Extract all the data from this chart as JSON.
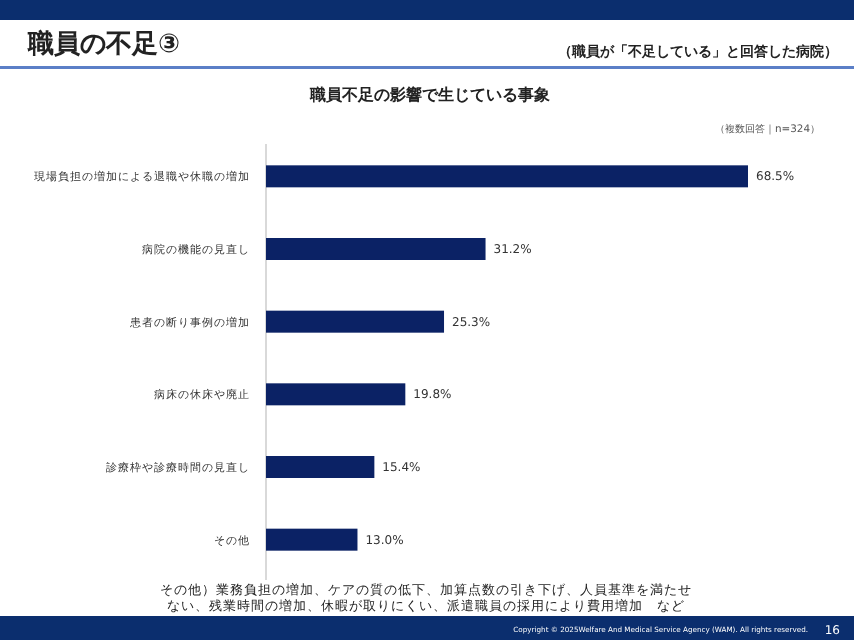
{
  "chart_data": {
    "type": "bar",
    "orientation": "horizontal",
    "title": "職員の不足③",
    "subtitle": "（職員が「不足している」と回答した病院）",
    "categories": [
      "現場負担の増加による退職や休職の増加",
      "病院の機能の見直し",
      "患者の断り事例の増加",
      "病床の休床や廃止",
      "診療枠や診療時間の見直し",
      "その他"
    ],
    "values": [
      68.5,
      31.2,
      25.3,
      19.8,
      15.4,
      13.0
    ],
    "value_labels": [
      "68.5%",
      "31.2%",
      "25.3%",
      "19.8%",
      "15.4%",
      "13.0%"
    ],
    "color": "#0b2265",
    "annotations": [
      "職員不足の影響で生じている事象",
      "（複数回答｜n=324）",
      "その他）業務負担の増加、ケアの質の低下、加算点数の引き下げ、人員基準を満たせない、残業時間の増加、休暇が取りにくい、派遣職員の採用により費用増加　など",
      "Copyright © 2025Welfare And Medical Service Agency (WAM). All rights reserved.",
      "16"
    ]
  }
}
